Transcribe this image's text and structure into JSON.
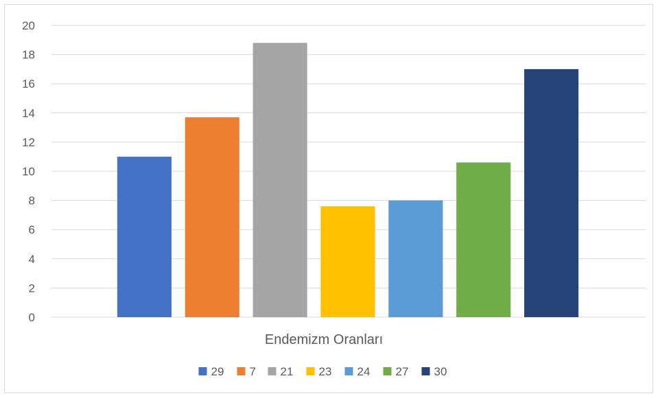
{
  "chart_data": {
    "type": "bar",
    "title": "",
    "xlabel": "Endemizm Oranları",
    "ylabel": "",
    "ylim": [
      0,
      20
    ],
    "yticks": [
      0,
      2,
      4,
      6,
      8,
      10,
      12,
      14,
      16,
      18,
      20
    ],
    "grid": true,
    "legend_position": "bottom",
    "categories": [
      "Endemizm Oranları"
    ],
    "series": [
      {
        "name": "29",
        "values": [
          11.0
        ],
        "color": "#4472C4"
      },
      {
        "name": "7",
        "values": [
          13.7
        ],
        "color": "#ED7D31"
      },
      {
        "name": "21",
        "values": [
          18.8
        ],
        "color": "#A5A5A5"
      },
      {
        "name": "23",
        "values": [
          7.6
        ],
        "color": "#FFC000"
      },
      {
        "name": "24",
        "values": [
          8.0
        ],
        "color": "#5B9BD5"
      },
      {
        "name": "27",
        "values": [
          10.6
        ],
        "color": "#70AD47"
      },
      {
        "name": "30",
        "values": [
          17.0
        ],
        "color": "#264478"
      }
    ]
  }
}
